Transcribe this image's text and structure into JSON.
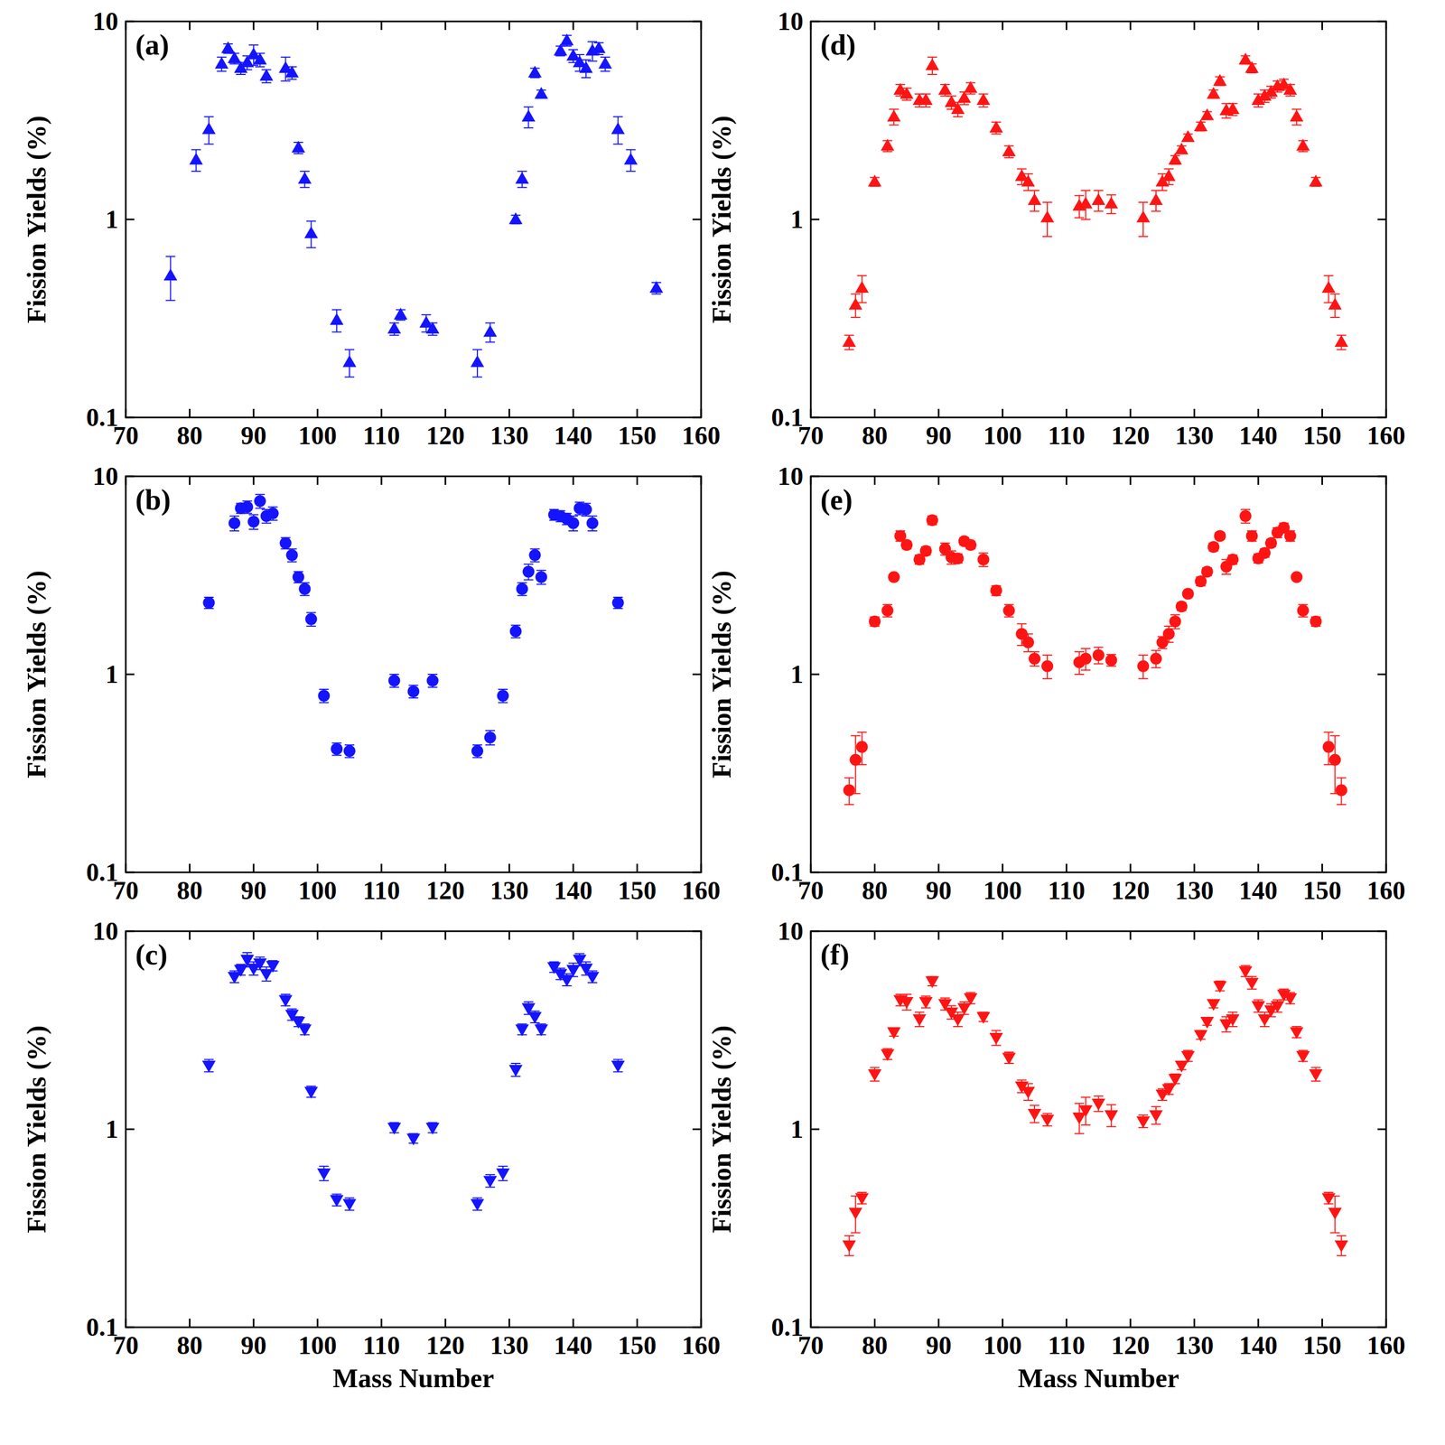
{
  "chart_data": [
    {
      "type": "scatter",
      "title": "(a)",
      "y_label": "Fission Yields (%)",
      "color": "#1414ff",
      "marker": "triangle-up",
      "log": "y",
      "xlim": [
        70,
        160
      ],
      "xticks": [
        70,
        80,
        90,
        100,
        110,
        120,
        130,
        140,
        150,
        160
      ],
      "ylim": [
        0.1,
        10
      ],
      "yticks": [
        0.1,
        1,
        10
      ],
      "x": [
        77,
        81,
        83,
        85,
        86,
        87,
        88,
        89,
        90,
        91,
        92,
        95,
        96,
        97,
        98,
        99,
        103,
        105,
        112,
        113,
        117,
        118,
        125,
        127,
        131,
        132,
        133,
        134,
        135,
        138,
        139,
        140,
        141,
        142,
        143,
        144,
        145,
        147,
        149,
        153
      ],
      "values": [
        0.52,
        2.0,
        2.85,
        6.1,
        7.3,
        6.5,
        5.8,
        6.2,
        6.8,
        6.4,
        5.3,
        5.8,
        5.5,
        2.3,
        1.6,
        0.85,
        0.31,
        0.19,
        0.28,
        0.33,
        0.3,
        0.28,
        0.19,
        0.27,
        1.0,
        1.6,
        3.3,
        5.5,
        4.3,
        7.1,
        8.0,
        6.7,
        6.2,
        5.8,
        7.1,
        7.3,
        6.1,
        2.85,
        2.0,
        0.45
      ],
      "errors": [
        0.13,
        0.25,
        0.45,
        0.5,
        0.4,
        0.4,
        0.4,
        0.5,
        0.8,
        0.5,
        0.4,
        0.8,
        0.4,
        0.15,
        0.15,
        0.13,
        0.04,
        0.03,
        0.02,
        0.02,
        0.03,
        0.02,
        0.03,
        0.03,
        0.05,
        0.15,
        0.4,
        0.3,
        0.2,
        0.4,
        0.5,
        0.5,
        0.6,
        0.6,
        0.8,
        0.5,
        0.5,
        0.45,
        0.25,
        0.03
      ]
    },
    {
      "type": "scatter",
      "title": "(b)",
      "y_label": "Fission Yields (%)",
      "color": "#1414ff",
      "marker": "circle",
      "log": "y",
      "xlim": [
        70,
        160
      ],
      "xticks": [
        70,
        80,
        90,
        100,
        110,
        120,
        130,
        140,
        150,
        160
      ],
      "ylim": [
        0.1,
        10
      ],
      "yticks": [
        0.1,
        1,
        10
      ],
      "x": [
        83,
        87,
        88,
        89,
        90,
        91,
        92,
        93,
        95,
        96,
        97,
        98,
        99,
        101,
        103,
        105,
        112,
        115,
        118,
        125,
        127,
        129,
        131,
        132,
        133,
        134,
        135,
        137,
        138,
        139,
        140,
        141,
        142,
        143,
        147
      ],
      "values": [
        2.3,
        5.8,
        6.9,
        7.0,
        5.9,
        7.5,
        6.3,
        6.5,
        4.6,
        4.0,
        3.1,
        2.7,
        1.9,
        0.78,
        0.42,
        0.41,
        0.93,
        0.82,
        0.93,
        0.41,
        0.48,
        0.78,
        1.65,
        2.7,
        3.3,
        4.0,
        3.1,
        6.4,
        6.3,
        6.1,
        5.8,
        6.9,
        6.8,
        5.8,
        2.3
      ],
      "errors": [
        0.15,
        0.5,
        0.4,
        0.5,
        0.5,
        0.6,
        0.5,
        0.5,
        0.3,
        0.3,
        0.2,
        0.2,
        0.15,
        0.06,
        0.03,
        0.03,
        0.07,
        0.06,
        0.07,
        0.03,
        0.04,
        0.06,
        0.12,
        0.2,
        0.3,
        0.3,
        0.25,
        0.4,
        0.4,
        0.4,
        0.5,
        0.5,
        0.5,
        0.5,
        0.15
      ]
    },
    {
      "type": "scatter",
      "title": "(c)",
      "x_label": "Mass Number",
      "y_label": "Fission Yields (%)",
      "color": "#1414ff",
      "marker": "triangle-down",
      "log": "y",
      "xlim": [
        70,
        160
      ],
      "xticks": [
        70,
        80,
        90,
        100,
        110,
        120,
        130,
        140,
        150,
        160
      ],
      "ylim": [
        0.1,
        10
      ],
      "yticks": [
        0.1,
        1,
        10
      ],
      "x": [
        83,
        87,
        88,
        89,
        90,
        91,
        92,
        93,
        95,
        96,
        97,
        98,
        99,
        101,
        103,
        105,
        112,
        115,
        118,
        125,
        127,
        129,
        131,
        132,
        133,
        134,
        135,
        137,
        138,
        139,
        140,
        141,
        142,
        143,
        147
      ],
      "values": [
        2.1,
        5.9,
        6.4,
        7.2,
        6.5,
        6.9,
        6.1,
        6.7,
        4.5,
        3.8,
        3.5,
        3.2,
        1.55,
        0.6,
        0.44,
        0.42,
        1.02,
        0.9,
        1.02,
        0.42,
        0.55,
        0.6,
        2.0,
        3.2,
        4.1,
        3.7,
        3.2,
        6.6,
        6.1,
        5.7,
        6.4,
        7.2,
        6.5,
        5.9,
        2.1
      ],
      "errors": [
        0.15,
        0.4,
        0.4,
        0.6,
        0.5,
        0.5,
        0.5,
        0.4,
        0.3,
        0.25,
        0.2,
        0.2,
        0.1,
        0.05,
        0.03,
        0.03,
        0.06,
        0.05,
        0.06,
        0.03,
        0.04,
        0.05,
        0.15,
        0.2,
        0.3,
        0.25,
        0.2,
        0.4,
        0.4,
        0.4,
        0.5,
        0.5,
        0.5,
        0.4,
        0.15
      ]
    },
    {
      "type": "scatter",
      "title": "(d)",
      "y_label": "Fission Yields (%)",
      "color": "#ff1414",
      "marker": "triangle-up",
      "log": "y",
      "xlim": [
        70,
        160
      ],
      "xticks": [
        70,
        80,
        90,
        100,
        110,
        120,
        130,
        140,
        150,
        160
      ],
      "ylim": [
        0.1,
        10
      ],
      "yticks": [
        0.1,
        1,
        10
      ],
      "x": [
        76,
        77,
        78,
        80,
        82,
        83,
        84,
        85,
        87,
        88,
        89,
        91,
        92,
        93,
        94,
        95,
        97,
        99,
        101,
        103,
        104,
        105,
        107,
        112,
        113,
        115,
        117,
        122,
        124,
        125,
        126,
        127,
        128,
        129,
        131,
        132,
        133,
        134,
        135,
        136,
        138,
        139,
        140,
        141,
        142,
        143,
        144,
        145,
        146,
        147,
        149,
        151,
        152,
        153
      ],
      "values": [
        0.24,
        0.37,
        0.45,
        1.55,
        2.35,
        3.3,
        4.5,
        4.3,
        4.0,
        4.0,
        6.0,
        4.5,
        3.9,
        3.6,
        4.1,
        4.6,
        4.0,
        2.9,
        2.2,
        1.65,
        1.55,
        1.25,
        1.02,
        1.17,
        1.2,
        1.25,
        1.2,
        1.02,
        1.25,
        1.55,
        1.65,
        2.0,
        2.25,
        2.6,
        2.95,
        3.35,
        4.3,
        5.0,
        3.55,
        3.6,
        6.4,
        5.8,
        4.0,
        4.2,
        4.4,
        4.7,
        4.8,
        4.5,
        3.3,
        2.35,
        1.55,
        0.45,
        0.37,
        0.24
      ],
      "errors": [
        0.02,
        0.05,
        0.07,
        0.08,
        0.15,
        0.3,
        0.3,
        0.3,
        0.3,
        0.3,
        0.6,
        0.3,
        0.3,
        0.3,
        0.3,
        0.3,
        0.3,
        0.2,
        0.15,
        0.15,
        0.15,
        0.15,
        0.2,
        0.15,
        0.2,
        0.15,
        0.13,
        0.2,
        0.15,
        0.15,
        0.15,
        0.1,
        0.1,
        0.1,
        0.15,
        0.15,
        0.2,
        0.25,
        0.3,
        0.25,
        0.3,
        0.3,
        0.3,
        0.3,
        0.3,
        0.3,
        0.3,
        0.3,
        0.3,
        0.15,
        0.08,
        0.07,
        0.05,
        0.02
      ]
    },
    {
      "type": "scatter",
      "title": "(e)",
      "y_label": "Fission Yields (%)",
      "color": "#ff1414",
      "marker": "circle",
      "log": "y",
      "xlim": [
        70,
        160
      ],
      "xticks": [
        70,
        80,
        90,
        100,
        110,
        120,
        130,
        140,
        150,
        160
      ],
      "ylim": [
        0.1,
        10
      ],
      "yticks": [
        0.1,
        1,
        10
      ],
      "x": [
        76,
        77,
        78,
        80,
        82,
        83,
        84,
        85,
        87,
        88,
        89,
        91,
        92,
        93,
        94,
        95,
        97,
        99,
        101,
        103,
        104,
        105,
        107,
        112,
        113,
        115,
        117,
        122,
        124,
        125,
        126,
        127,
        128,
        129,
        131,
        132,
        133,
        134,
        135,
        136,
        138,
        139,
        140,
        141,
        142,
        143,
        144,
        145,
        146,
        147,
        149,
        151,
        152,
        153
      ],
      "values": [
        0.26,
        0.37,
        0.43,
        1.85,
        2.1,
        3.1,
        5.0,
        4.5,
        3.8,
        4.2,
        6.0,
        4.3,
        3.9,
        3.85,
        4.7,
        4.5,
        3.8,
        2.65,
        2.1,
        1.6,
        1.45,
        1.2,
        1.1,
        1.15,
        1.2,
        1.25,
        1.18,
        1.1,
        1.2,
        1.45,
        1.6,
        1.85,
        2.2,
        2.55,
        2.95,
        3.3,
        4.4,
        5.0,
        3.5,
        3.8,
        6.3,
        5.0,
        3.85,
        4.1,
        4.6,
        5.2,
        5.5,
        5.0,
        3.1,
        2.1,
        1.85,
        0.43,
        0.37,
        0.26
      ],
      "errors": [
        0.04,
        0.12,
        0.08,
        0.1,
        0.15,
        0.1,
        0.3,
        0.2,
        0.2,
        0.2,
        0.3,
        0.3,
        0.3,
        0.2,
        0.2,
        0.2,
        0.3,
        0.15,
        0.15,
        0.2,
        0.15,
        0.1,
        0.15,
        0.15,
        0.15,
        0.12,
        0.08,
        0.15,
        0.12,
        0.1,
        0.15,
        0.15,
        0.1,
        0.1,
        0.15,
        0.15,
        0.2,
        0.2,
        0.3,
        0.2,
        0.5,
        0.3,
        0.2,
        0.2,
        0.2,
        0.3,
        0.3,
        0.3,
        0.1,
        0.15,
        0.1,
        0.08,
        0.12,
        0.04
      ]
    },
    {
      "type": "scatter",
      "title": "(f)",
      "x_label": "Mass Number",
      "y_label": "Fission Yields (%)",
      "color": "#ff1414",
      "marker": "triangle-down",
      "log": "y",
      "xlim": [
        70,
        160
      ],
      "xticks": [
        70,
        80,
        90,
        100,
        110,
        120,
        130,
        140,
        150,
        160
      ],
      "ylim": [
        0.1,
        10
      ],
      "yticks": [
        0.1,
        1,
        10
      ],
      "x": [
        76,
        77,
        78,
        80,
        82,
        83,
        84,
        85,
        87,
        88,
        89,
        91,
        92,
        93,
        94,
        95,
        97,
        99,
        101,
        103,
        104,
        105,
        107,
        112,
        113,
        115,
        117,
        122,
        124,
        125,
        126,
        127,
        128,
        129,
        131,
        132,
        133,
        134,
        135,
        136,
        138,
        139,
        140,
        141,
        142,
        143,
        144,
        145,
        146,
        147,
        149,
        151,
        152,
        153
      ],
      "values": [
        0.26,
        0.38,
        0.45,
        1.9,
        2.4,
        3.1,
        4.5,
        4.4,
        3.6,
        4.4,
        5.6,
        4.3,
        3.9,
        3.6,
        4.1,
        4.6,
        3.7,
        2.9,
        2.3,
        1.65,
        1.55,
        1.2,
        1.12,
        1.15,
        1.25,
        1.35,
        1.18,
        1.1,
        1.18,
        1.5,
        1.6,
        1.8,
        2.1,
        2.35,
        3.0,
        3.5,
        4.3,
        5.3,
        3.4,
        3.6,
        6.3,
        5.5,
        4.2,
        3.6,
        4.0,
        4.2,
        4.8,
        4.6,
        3.1,
        2.35,
        1.9,
        0.45,
        0.38,
        0.26
      ],
      "errors": [
        0.03,
        0.08,
        0.03,
        0.15,
        0.15,
        0.15,
        0.3,
        0.4,
        0.3,
        0.3,
        0.3,
        0.3,
        0.3,
        0.3,
        0.3,
        0.3,
        0.2,
        0.25,
        0.15,
        0.12,
        0.15,
        0.12,
        0.08,
        0.2,
        0.2,
        0.12,
        0.15,
        0.08,
        0.12,
        0.1,
        0.1,
        0.1,
        0.1,
        0.15,
        0.15,
        0.15,
        0.2,
        0.3,
        0.3,
        0.3,
        0.4,
        0.4,
        0.3,
        0.3,
        0.3,
        0.3,
        0.3,
        0.3,
        0.2,
        0.15,
        0.15,
        0.03,
        0.08,
        0.03
      ]
    }
  ]
}
